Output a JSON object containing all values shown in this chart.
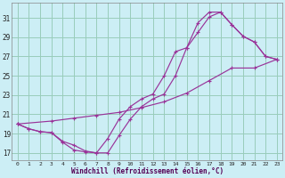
{
  "xlabel": "Windchill (Refroidissement éolien,°C)",
  "bg_color": "#cceef5",
  "grid_color": "#99ccbb",
  "line_color": "#993399",
  "xlim": [
    -0.5,
    23.5
  ],
  "ylim": [
    16.2,
    32.6
  ],
  "yticks": [
    17,
    19,
    21,
    23,
    25,
    27,
    29,
    31
  ],
  "xticks": [
    0,
    1,
    2,
    3,
    4,
    5,
    6,
    7,
    8,
    9,
    10,
    11,
    12,
    13,
    14,
    15,
    16,
    17,
    18,
    19,
    20,
    21,
    22,
    23
  ],
  "line1_x": [
    0,
    1,
    2,
    3,
    4,
    5,
    6,
    7,
    8,
    9,
    10,
    11,
    12,
    13,
    14,
    15,
    16,
    17,
    18,
    19,
    20,
    21,
    22,
    23
  ],
  "line1_y": [
    20.0,
    19.5,
    19.2,
    19.1,
    18.1,
    17.3,
    17.1,
    17.0,
    18.5,
    20.5,
    21.8,
    22.6,
    23.1,
    25.0,
    27.5,
    27.9,
    30.5,
    31.6,
    31.6,
    30.3,
    29.1,
    28.5,
    27.0,
    26.7
  ],
  "line2_x": [
    0,
    1,
    2,
    3,
    4,
    5,
    6,
    7,
    8,
    9,
    10,
    11,
    12,
    13,
    14,
    15,
    16,
    17,
    18,
    19,
    20,
    21,
    22,
    23
  ],
  "line2_y": [
    20.0,
    19.5,
    19.2,
    19.1,
    18.2,
    17.8,
    17.2,
    17.0,
    17.0,
    18.8,
    20.5,
    21.8,
    22.6,
    23.1,
    25.0,
    27.9,
    29.5,
    31.1,
    31.6,
    30.3,
    29.1,
    28.5,
    27.0,
    26.7
  ],
  "line3_x": [
    0,
    3,
    5,
    7,
    9,
    11,
    13,
    15,
    17,
    19,
    21,
    23
  ],
  "line3_y": [
    20.0,
    20.3,
    20.6,
    20.9,
    21.2,
    21.7,
    22.3,
    23.2,
    24.5,
    25.8,
    25.8,
    26.7
  ]
}
